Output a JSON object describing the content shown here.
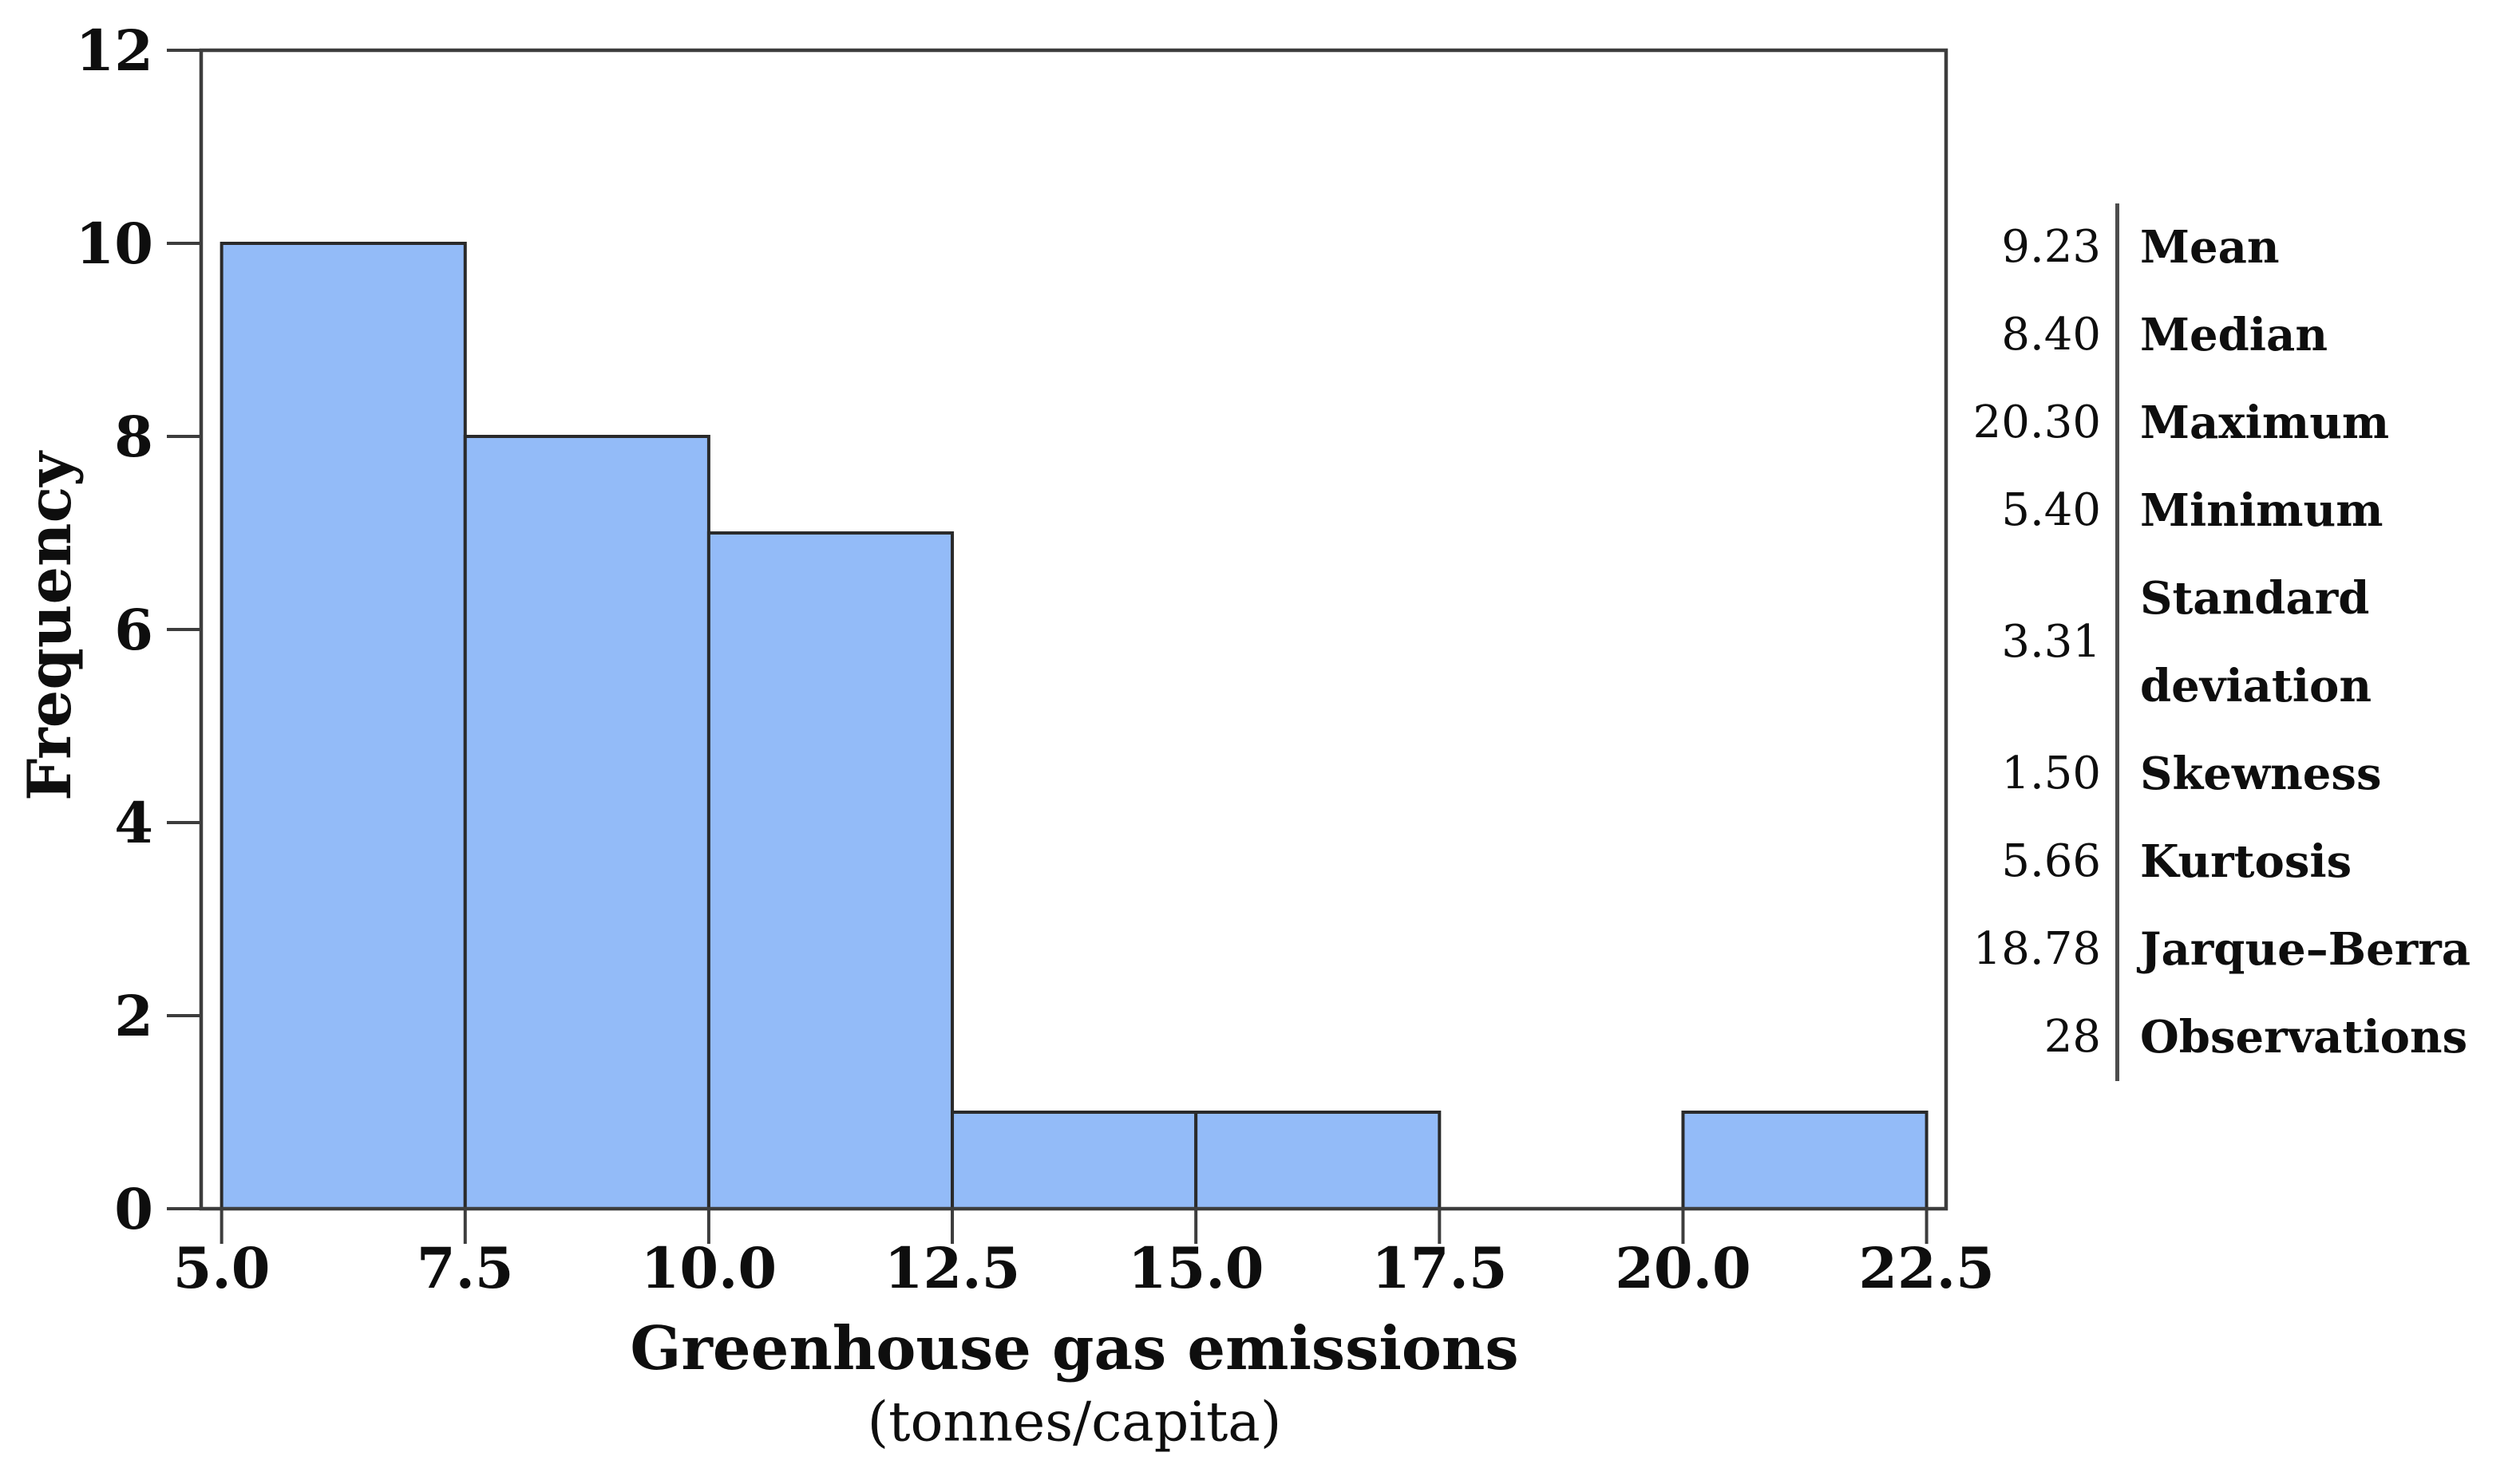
{
  "chart_data": {
    "type": "bar",
    "subtype": "histogram",
    "title": "",
    "xlabel": "Greenhouse gas emissions",
    "xlabel_unit": "(tonnes/capita)",
    "ylabel": "Frequency",
    "bin_edges": [
      5.0,
      7.5,
      10.0,
      12.5,
      15.0,
      17.5,
      20.0,
      22.5
    ],
    "frequencies": [
      10,
      8,
      7,
      1,
      1,
      0,
      1
    ],
    "x_tick_labels": [
      "5.0",
      "7.5",
      "10.0",
      "12.5",
      "15.0",
      "17.5",
      "20.0",
      "22.5"
    ],
    "y_tick_labels": [
      "0",
      "2",
      "4",
      "6",
      "8",
      "10",
      "12"
    ],
    "y_tick_values": [
      0,
      2,
      4,
      6,
      8,
      10,
      12
    ],
    "xlim": [
      4.79,
      22.7
    ],
    "ylim": [
      0,
      12
    ],
    "grid": false,
    "legend": "none",
    "colors": {
      "bar_fill": "#93BBF8",
      "bar_stroke": "#2a2a2a",
      "axis": "#3d3d3d",
      "text": "#0e0e0e",
      "stats_divider": "#4d4d4d"
    },
    "stats_table": [
      {
        "value": "9.23",
        "label": "Mean"
      },
      {
        "value": "8.40",
        "label": "Median"
      },
      {
        "value": "20.30",
        "label": "Maximum"
      },
      {
        "value": "5.40",
        "label": "Minimum"
      },
      {
        "value": "3.31",
        "label": "Standard deviation"
      },
      {
        "value": "1.50",
        "label": "Skewness"
      },
      {
        "value": "5.66",
        "label": "Kurtosis"
      },
      {
        "value": "18.78",
        "label": "Jarque–Berra"
      },
      {
        "value": "28",
        "label": "Observations"
      }
    ]
  }
}
